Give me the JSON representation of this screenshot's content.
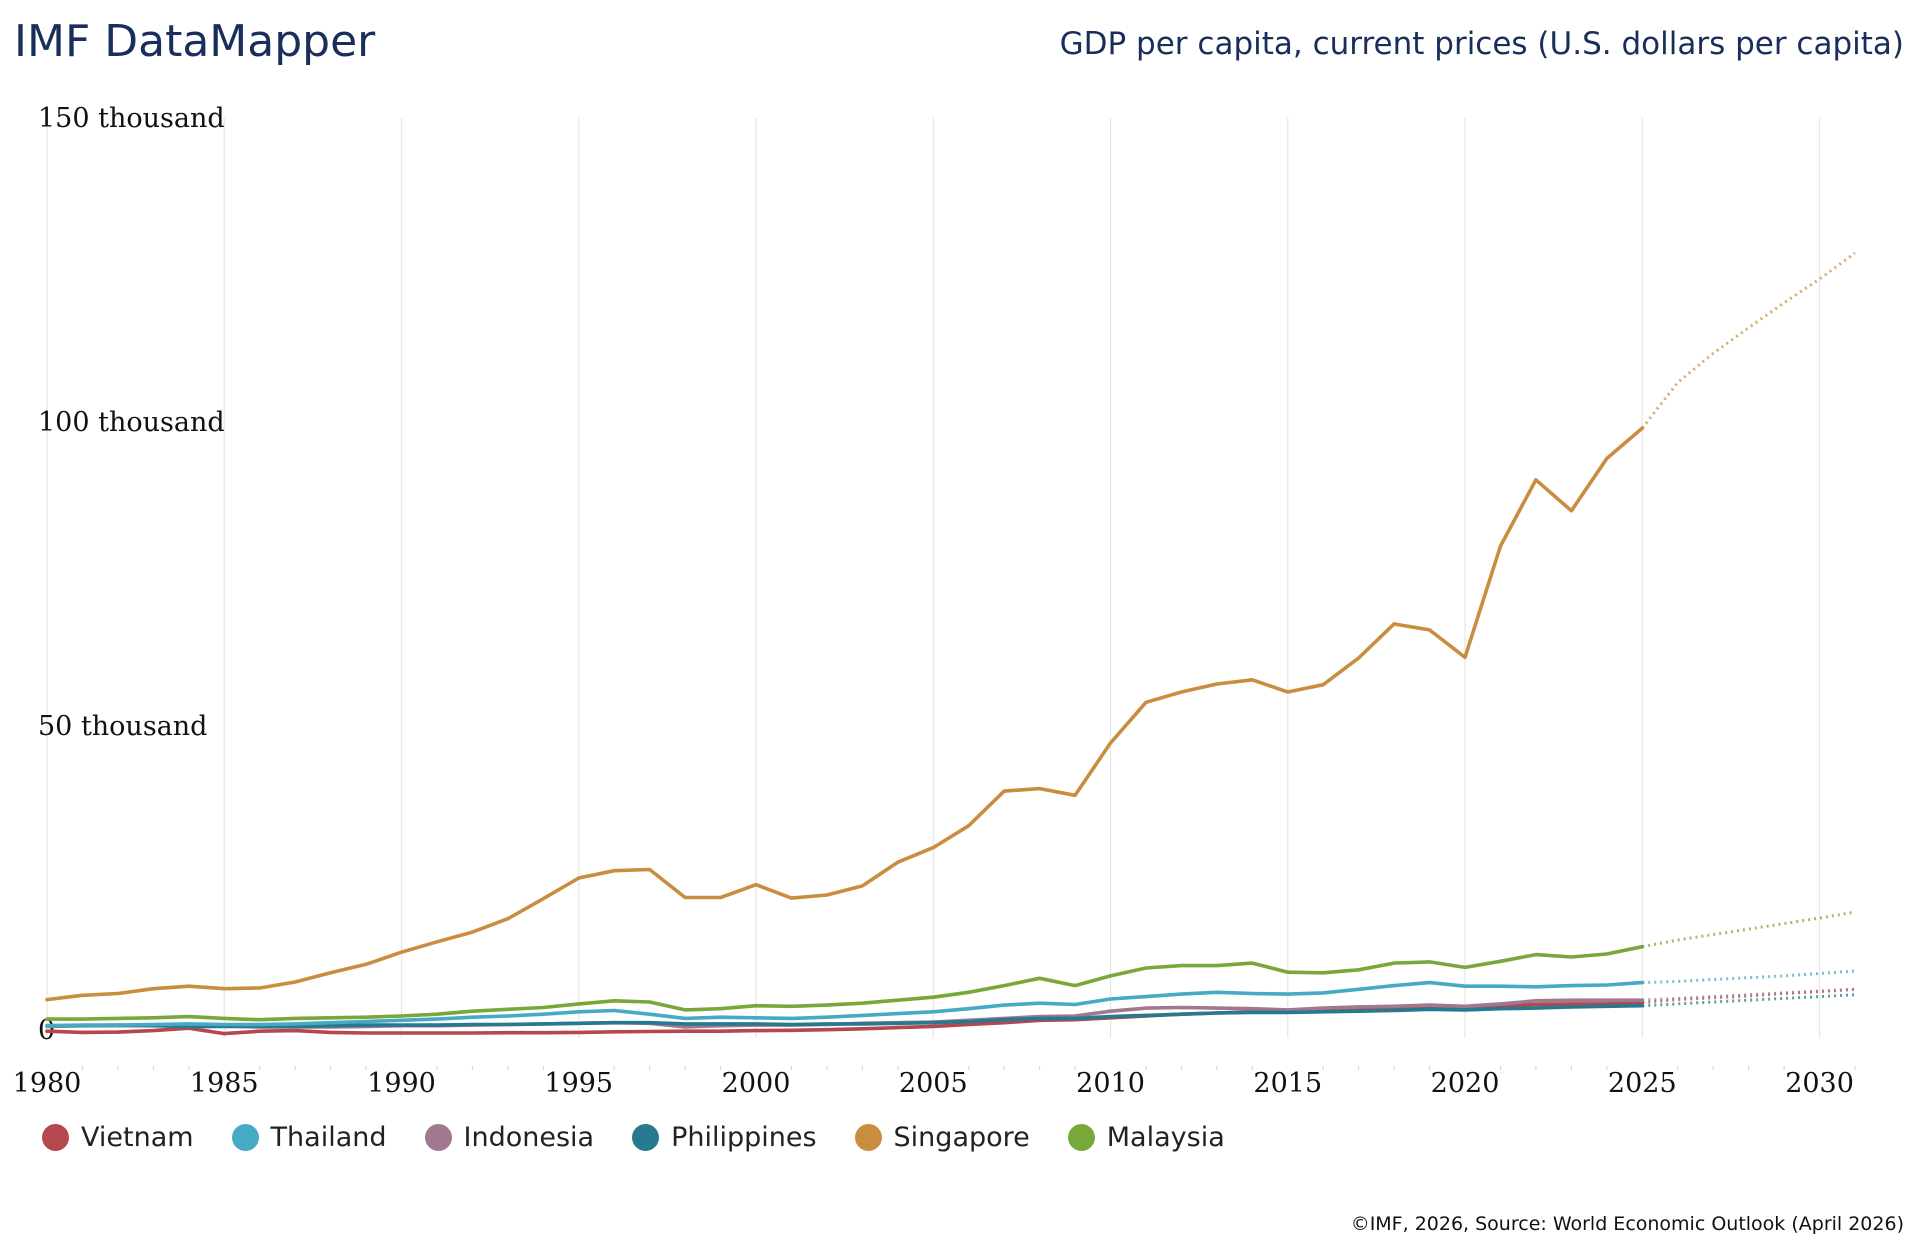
{
  "header": {
    "brand": "IMF DataMapper",
    "title": "GDP per capita, current prices (U.S. dollars per capita)"
  },
  "footer": {
    "source": "©IMF, 2026, Source: World Economic Outlook (April 2026)"
  },
  "colors": {
    "Vietnam": "#b5474f",
    "Thailand": "#45aac3",
    "Indonesia": "#a07890",
    "Philippines": "#27798f",
    "Singapore": "#c98d40",
    "Malaysia": "#78a83a"
  },
  "chart_data": {
    "type": "line",
    "xlim": [
      1980,
      2031
    ],
    "ylim": [
      0,
      150000
    ],
    "x_ticks": [
      "1980",
      "1985",
      "1990",
      "1995",
      "2000",
      "2005",
      "2010",
      "2015",
      "2020",
      "2025",
      "2030"
    ],
    "y_ticks": [
      {
        "value": 0,
        "label": "0"
      },
      {
        "value": 50000,
        "label": "50 thousand"
      },
      {
        "value": 100000,
        "label": "100 thousand"
      },
      {
        "value": 150000,
        "label": "150 thousand"
      }
    ],
    "grid": "vertical",
    "legend": "bottom-left",
    "projection_start": 2025,
    "start_year": 1980,
    "series": [
      {
        "name": "Vietnam",
        "values": [
          -200,
          -400,
          -350,
          -100,
          300,
          -600,
          -200,
          -100,
          -400,
          -500,
          -500,
          -500,
          -500,
          -450,
          -450,
          -400,
          -300,
          -250,
          -200,
          -200,
          -100,
          -50,
          50,
          200,
          400,
          600,
          900,
          1200,
          1600,
          1700,
          2000,
          2300,
          2600,
          2800,
          3000,
          3100,
          3200,
          3400,
          3600,
          3700,
          3800,
          4000,
          4200,
          4300,
          4300,
          4500,
          5000,
          5300,
          5600,
          6000,
          6300,
          6700
        ]
      },
      {
        "name": "Thailand",
        "values": [
          700,
          800,
          800,
          900,
          1000,
          900,
          900,
          1000,
          1200,
          1400,
          1600,
          1800,
          2100,
          2300,
          2600,
          3000,
          3200,
          2600,
          1900,
          2100,
          2000,
          1900,
          2100,
          2400,
          2700,
          3000,
          3500,
          4100,
          4400,
          4200,
          5100,
          5500,
          5900,
          6200,
          6000,
          5900,
          6100,
          6700,
          7300,
          7800,
          7200,
          7200,
          7100,
          7300,
          7400,
          7800,
          8000,
          8300,
          8600,
          8900,
          9300,
          9700
        ]
      },
      {
        "name": "Indonesia",
        "values": [
          600,
          700,
          700,
          700,
          700,
          700,
          500,
          500,
          500,
          600,
          700,
          700,
          800,
          900,
          1000,
          1100,
          1200,
          1100,
          500,
          700,
          800,
          800,
          900,
          1100,
          1200,
          1300,
          1600,
          1900,
          2200,
          2300,
          3100,
          3600,
          3700,
          3600,
          3500,
          3300,
          3600,
          3800,
          3900,
          4100,
          3900,
          4300,
          4800,
          4900,
          4900,
          4900,
          5200,
          5500,
          5800,
          6100,
          6400,
          6700
        ]
      },
      {
        "name": "Philippines",
        "values": [
          700,
          700,
          800,
          700,
          600,
          600,
          600,
          600,
          700,
          800,
          800,
          800,
          900,
          900,
          1000,
          1100,
          1200,
          1200,
          1000,
          1000,
          1000,
          900,
          1000,
          1000,
          1100,
          1200,
          1400,
          1700,
          1900,
          1900,
          2200,
          2400,
          2600,
          2800,
          2900,
          2900,
          3000,
          3100,
          3200,
          3400,
          3300,
          3500,
          3600,
          3800,
          3900,
          4000,
          4300,
          4600,
          4900,
          5200,
          5500,
          5800
        ]
      },
      {
        "name": "Singapore",
        "values": [
          5000,
          5700,
          6000,
          6800,
          7200,
          6800,
          6900,
          7900,
          9400,
          10800,
          12800,
          14500,
          16100,
          18300,
          21600,
          25000,
          26200,
          26400,
          21800,
          21800,
          23900,
          21700,
          22200,
          23700,
          27600,
          30000,
          33600,
          39300,
          39700,
          38600,
          47200,
          53900,
          55600,
          56900,
          57600,
          55600,
          56800,
          61200,
          66800,
          65800,
          61300,
          79600,
          90500,
          85400,
          94000,
          99000,
          106500,
          111300,
          115500,
          119600,
          123500,
          127800
        ]
      },
      {
        "name": "Malaysia",
        "values": [
          1800,
          1800,
          1900,
          2000,
          2200,
          1900,
          1700,
          1900,
          2000,
          2100,
          2300,
          2600,
          3100,
          3400,
          3700,
          4300,
          4800,
          4600,
          3300,
          3500,
          4000,
          3900,
          4100,
          4400,
          4900,
          5400,
          6200,
          7300,
          8500,
          7300,
          8900,
          10200,
          10600,
          10600,
          11000,
          9500,
          9400,
          9900,
          11000,
          11200,
          10300,
          11300,
          12400,
          12000,
          12500,
          13700,
          14800,
          15700,
          16600,
          17500,
          18400,
          19400
        ]
      }
    ]
  }
}
